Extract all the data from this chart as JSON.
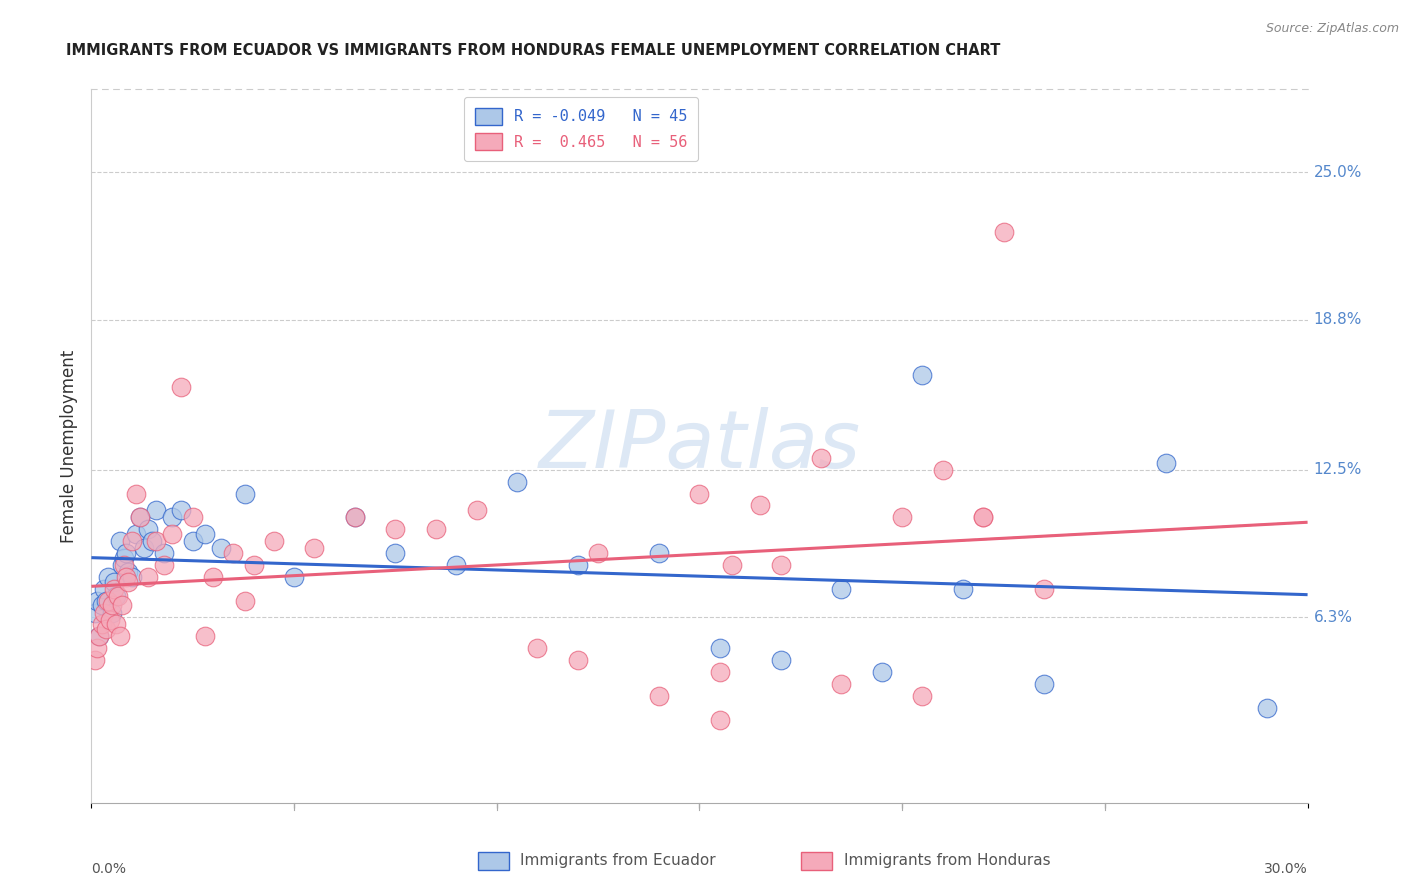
{
  "title": "IMMIGRANTS FROM ECUADOR VS IMMIGRANTS FROM HONDURAS FEMALE UNEMPLOYMENT CORRELATION CHART",
  "source": "Source: ZipAtlas.com",
  "ylabel": "Female Unemployment",
  "right_ytick_vals": [
    6.3,
    12.5,
    18.8,
    25.0
  ],
  "right_ytick_labels": [
    "6.3%",
    "12.5%",
    "18.8%",
    "25.0%"
  ],
  "xlim": [
    0.0,
    30.0
  ],
  "ylim": [
    -1.5,
    28.5
  ],
  "ecuador_R": -0.049,
  "ecuador_N": 45,
  "honduras_R": 0.465,
  "honduras_N": 56,
  "ecuador_color": "#adc8e8",
  "honduras_color": "#f5aaba",
  "ecuador_line_color": "#3366cc",
  "honduras_line_color": "#e8607a",
  "watermark": "ZIPatlas",
  "ecuador_x": [
    0.1,
    0.15,
    0.2,
    0.25,
    0.3,
    0.35,
    0.4,
    0.5,
    0.55,
    0.6,
    0.7,
    0.75,
    0.8,
    0.85,
    0.9,
    1.0,
    1.1,
    1.2,
    1.3,
    1.4,
    1.5,
    1.6,
    1.8,
    2.0,
    2.2,
    2.5,
    2.8,
    3.2,
    3.8,
    5.0,
    6.5,
    7.5,
    9.0,
    10.5,
    12.0,
    14.0,
    15.5,
    17.0,
    18.5,
    19.5,
    20.5,
    21.5,
    23.5,
    26.5,
    29.0
  ],
  "ecuador_y": [
    6.5,
    7.0,
    5.5,
    6.8,
    7.5,
    7.0,
    8.0,
    6.5,
    7.8,
    7.2,
    9.5,
    8.5,
    8.8,
    9.0,
    8.2,
    8.0,
    9.8,
    10.5,
    9.2,
    10.0,
    9.5,
    10.8,
    9.0,
    10.5,
    10.8,
    9.5,
    9.8,
    9.2,
    11.5,
    8.0,
    10.5,
    9.0,
    8.5,
    12.0,
    8.5,
    9.0,
    5.0,
    4.5,
    7.5,
    4.0,
    16.5,
    7.5,
    3.5,
    12.8,
    2.5
  ],
  "honduras_x": [
    0.1,
    0.15,
    0.2,
    0.25,
    0.3,
    0.35,
    0.4,
    0.45,
    0.5,
    0.55,
    0.6,
    0.65,
    0.7,
    0.75,
    0.8,
    0.85,
    0.9,
    1.0,
    1.1,
    1.2,
    1.4,
    1.6,
    1.8,
    2.0,
    2.5,
    3.0,
    3.5,
    4.0,
    4.5,
    5.5,
    6.5,
    7.5,
    8.5,
    9.5,
    11.0,
    12.5,
    14.0,
    15.5,
    17.0,
    18.0,
    20.0,
    21.0,
    22.0,
    23.5,
    15.0,
    16.5,
    18.5,
    20.5,
    22.5,
    15.5,
    12.0,
    3.8,
    2.8,
    2.2,
    22.0,
    15.8
  ],
  "honduras_y": [
    4.5,
    5.0,
    5.5,
    6.0,
    6.5,
    5.8,
    7.0,
    6.2,
    6.8,
    7.5,
    6.0,
    7.2,
    5.5,
    6.8,
    8.5,
    8.0,
    7.8,
    9.5,
    11.5,
    10.5,
    8.0,
    9.5,
    8.5,
    9.8,
    10.5,
    8.0,
    9.0,
    8.5,
    9.5,
    9.2,
    10.5,
    10.0,
    10.0,
    10.8,
    5.0,
    9.0,
    3.0,
    2.0,
    8.5,
    13.0,
    10.5,
    12.5,
    10.5,
    7.5,
    11.5,
    11.0,
    3.5,
    3.0,
    22.5,
    4.0,
    4.5,
    7.0,
    5.5,
    16.0,
    10.5,
    8.5
  ]
}
